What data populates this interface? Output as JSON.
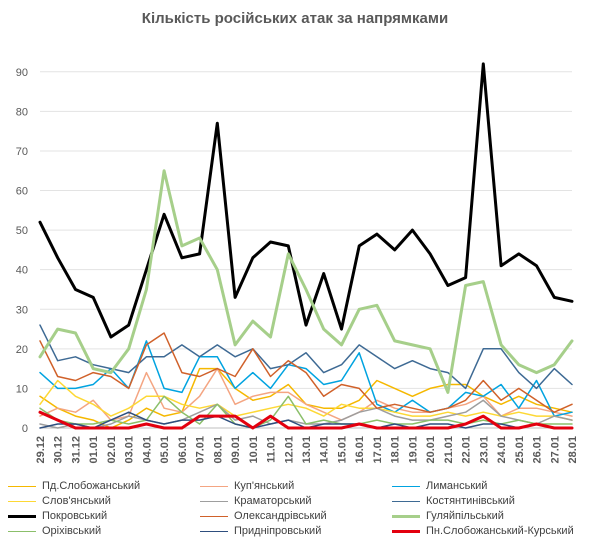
{
  "chart_data": {
    "type": "line",
    "title": "Кількість російських атак за напрямками",
    "xlabel": "",
    "ylabel": "",
    "ylim": [
      0,
      95
    ],
    "yticks": [
      0,
      10,
      20,
      30,
      40,
      50,
      60,
      70,
      80,
      90
    ],
    "grid": true,
    "legend_position": "bottom",
    "categories": [
      "29.12",
      "30.12",
      "31.12",
      "01.01",
      "02.01",
      "03.01",
      "04.01",
      "05.01",
      "06.01",
      "07.01",
      "08.01",
      "09.01",
      "10.01",
      "11.01",
      "12.01",
      "13.01",
      "14.01",
      "15.01",
      "16.01",
      "17.01",
      "18.01",
      "19.01",
      "20.01",
      "21.01",
      "22.01",
      "23.01",
      "24.01",
      "25.01",
      "26.01",
      "27.01",
      "28.01"
    ],
    "series": [
      {
        "name": "Пд.Слобожанський",
        "color": "#F5B800",
        "width": 1.5,
        "values": [
          8,
          5,
          3,
          2,
          0,
          2,
          5,
          3,
          4,
          15,
          15,
          10,
          7,
          8,
          11,
          6,
          5,
          5,
          7,
          12,
          10,
          8,
          10,
          11,
          11,
          8,
          6,
          8,
          6,
          5,
          4
        ]
      },
      {
        "name": "Куп'янський",
        "color": "#F4A582",
        "width": 1.5,
        "values": [
          3,
          5,
          4,
          7,
          2,
          3,
          14,
          5,
          4,
          8,
          15,
          6,
          8,
          9,
          9,
          6,
          4,
          2,
          4,
          7,
          5,
          4,
          4,
          5,
          6,
          8,
          3,
          5,
          5,
          4,
          3
        ]
      },
      {
        "name": "Лиманський",
        "color": "#00A3E0",
        "width": 1.5,
        "values": [
          14,
          10,
          10,
          11,
          15,
          10,
          22,
          10,
          9,
          18,
          18,
          10,
          14,
          10,
          16,
          15,
          11,
          12,
          19,
          6,
          4,
          7,
          4,
          5,
          9,
          8,
          11,
          5,
          12,
          3,
          4
        ]
      },
      {
        "name": "Слов'янський",
        "color": "#FDD835",
        "width": 1.5,
        "values": [
          6,
          12,
          8,
          6,
          3,
          5,
          8,
          8,
          6,
          5,
          6,
          3,
          4,
          5,
          6,
          5,
          3,
          6,
          5,
          5,
          4,
          3,
          3,
          4,
          3,
          4,
          3,
          4,
          3,
          3,
          2
        ]
      },
      {
        "name": "Краматорський",
        "color": "#9E9E9E",
        "width": 1.5,
        "values": [
          1,
          0,
          1,
          0,
          1,
          3,
          2,
          1,
          2,
          4,
          6,
          2,
          3,
          1,
          2,
          1,
          1,
          2,
          4,
          5,
          3,
          2,
          2,
          3,
          4,
          7,
          3,
          2,
          1,
          3,
          2
        ]
      },
      {
        "name": "Костянтинівський",
        "color": "#3E6A94",
        "width": 1.5,
        "values": [
          26,
          17,
          18,
          16,
          15,
          14,
          18,
          18,
          21,
          18,
          21,
          18,
          20,
          15,
          16,
          19,
          14,
          16,
          21,
          18,
          15,
          17,
          15,
          14,
          10,
          20,
          20,
          14,
          10,
          15,
          11
        ]
      },
      {
        "name": "Покровський",
        "color": "#000000",
        "width": 3,
        "values": [
          52,
          43,
          35,
          33,
          23,
          26,
          40,
          54,
          43,
          44,
          77,
          33,
          43,
          47,
          46,
          26,
          39,
          25,
          46,
          49,
          45,
          50,
          44,
          36,
          38,
          92,
          41,
          44,
          41,
          33,
          32
        ]
      },
      {
        "name": "Олександрівський",
        "color": "#D0612A",
        "width": 1.5,
        "values": [
          22,
          13,
          12,
          14,
          13,
          10,
          21,
          24,
          14,
          13,
          15,
          13,
          20,
          13,
          17,
          14,
          8,
          11,
          10,
          5,
          6,
          5,
          4,
          5,
          7,
          12,
          7,
          10,
          7,
          4,
          6
        ]
      },
      {
        "name": "Гуляйпільський",
        "color": "#A6CF8A",
        "width": 3,
        "values": [
          18,
          25,
          24,
          15,
          14,
          20,
          35,
          65,
          46,
          48,
          40,
          21,
          27,
          23,
          44,
          35,
          25,
          21,
          30,
          31,
          22,
          21,
          20,
          9,
          36,
          37,
          21,
          16,
          14,
          16,
          22
        ]
      },
      {
        "name": "Оріхівський",
        "color": "#8BBF6A",
        "width": 1.5,
        "values": [
          5,
          2,
          1,
          1,
          2,
          1,
          2,
          8,
          4,
          1,
          6,
          1,
          0,
          2,
          8,
          1,
          2,
          1,
          1,
          2,
          1,
          1,
          2,
          2,
          1,
          2,
          1,
          2,
          1,
          1,
          1
        ]
      },
      {
        "name": "Придніпровський",
        "color": "#2E4E7E",
        "width": 1.5,
        "values": [
          0,
          1,
          1,
          0,
          2,
          4,
          2,
          1,
          2,
          2,
          3,
          1,
          0,
          1,
          2,
          0,
          1,
          1,
          1,
          0,
          1,
          0,
          1,
          1,
          0,
          1,
          1,
          0,
          1,
          0,
          0
        ]
      },
      {
        "name": "Пн.Слобожанський-Курський",
        "color": "#E3000F",
        "width": 3,
        "values": [
          4,
          2,
          0,
          0,
          0,
          0,
          1,
          0,
          0,
          3,
          3,
          3,
          0,
          3,
          0,
          0,
          0,
          0,
          1,
          0,
          0,
          0,
          0,
          0,
          1,
          3,
          0,
          0,
          1,
          0,
          0
        ]
      }
    ]
  }
}
